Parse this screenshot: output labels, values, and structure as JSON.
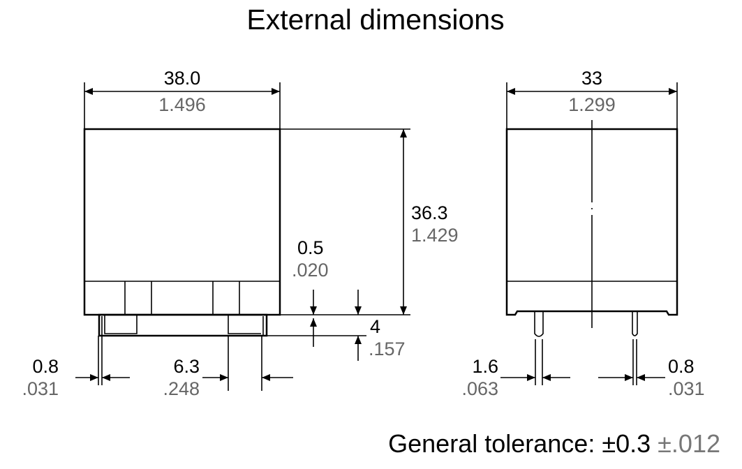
{
  "title": "External dimensions",
  "front_view": {
    "width": {
      "mm": "38.0",
      "in": "1.496"
    },
    "height": {
      "mm": "36.3",
      "in": "1.429"
    },
    "standoff": {
      "mm": "0.5",
      "in": ".020"
    },
    "pin_length": {
      "mm": "4",
      "in": ".157"
    },
    "pin_thickness": {
      "mm": "0.8",
      "in": ".031"
    },
    "pad_width": {
      "mm": "6.3",
      "in": ".248"
    }
  },
  "side_view": {
    "width": {
      "mm": "33",
      "in": "1.299"
    },
    "pin_width_left": {
      "mm": "1.6",
      "in": ".063"
    },
    "pin_width_right": {
      "mm": "0.8",
      "in": ".031"
    }
  },
  "footer": {
    "label": "General tolerance:",
    "tol_mm": "±0.3",
    "tol_in": "±.012"
  }
}
